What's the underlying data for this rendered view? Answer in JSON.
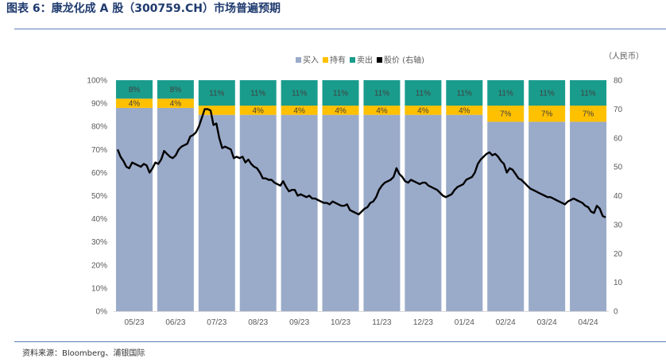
{
  "header": {
    "title": "图表 6：康龙化成 A 股（300759.CH）市场普遍预期"
  },
  "footer": {
    "source": "资料来源：Bloomberg、浦银国际"
  },
  "chart_data": {
    "type": "bar",
    "stacked": true,
    "percent_axis": true,
    "categories": [
      "05/23",
      "06/23",
      "07/23",
      "08/23",
      "09/23",
      "10/23",
      "11/23",
      "12/23",
      "01/24",
      "02/24",
      "03/24",
      "04/24"
    ],
    "series": [
      {
        "name": "买入",
        "color": "#9aaac9",
        "values": [
          88,
          88,
          85,
          85,
          85,
          85,
          85,
          85,
          85,
          82,
          82,
          82
        ]
      },
      {
        "name": "持有",
        "color": "#ffc000",
        "values": [
          4,
          4,
          4,
          4,
          4,
          4,
          4,
          4,
          4,
          7,
          7,
          7
        ]
      },
      {
        "name": "卖出",
        "color": "#1a9c8c",
        "values": [
          8,
          8,
          11,
          11,
          11,
          11,
          11,
          11,
          11,
          11,
          11,
          11
        ]
      }
    ],
    "segment_labels": {
      "持有": [
        "4%",
        "4%",
        "",
        "4%",
        "4%",
        "4%",
        "4%",
        "4%",
        "4%",
        "7%",
        "7%",
        "7%"
      ],
      "卖出": [
        "8%",
        "8%",
        "11%",
        "11%",
        "11%",
        "11%",
        "11%",
        "11%",
        "11%",
        "11%",
        "11%",
        "11%"
      ]
    },
    "line_series": {
      "name": "股价 (右轴)",
      "color": "#000000",
      "axis": "right",
      "values": [
        56,
        53.5,
        52,
        50,
        49.5,
        51.5,
        51,
        50.5,
        50,
        51,
        50.5,
        48,
        49.5,
        51.5,
        51,
        52.5,
        55.5,
        54.5,
        53.5,
        53,
        54,
        56,
        57,
        57.5,
        58,
        60.5,
        61,
        62,
        64,
        67,
        70,
        70,
        69.5,
        64.5,
        65,
        60,
        56.5,
        57,
        56.5,
        56,
        53,
        53.5,
        53,
        53.5,
        51.5,
        52.5,
        51,
        50,
        49.5,
        48,
        46,
        46,
        45.5,
        45.5,
        44.5,
        44,
        43.5,
        45,
        43,
        41.5,
        42,
        42,
        40,
        40.5,
        40,
        39.5,
        40,
        39,
        39,
        38.5,
        38,
        37.5,
        37.5,
        37,
        38,
        37.5,
        37,
        36.5,
        36.5,
        37,
        35,
        34.5,
        34,
        33.5,
        34.5,
        35.5,
        36,
        37.5,
        38,
        39.5,
        42,
        43.5,
        44.5,
        45,
        45.5,
        46.5,
        49.5,
        47.5,
        46.5,
        45,
        44.5,
        45.5,
        45,
        44.5,
        44,
        44.5,
        44.5,
        43.5,
        43,
        42.5,
        42,
        41,
        40,
        39.5,
        40,
        40.5,
        42,
        43,
        43.5,
        44,
        45.5,
        46,
        46.5,
        48,
        51,
        52.5,
        53.5,
        54.5,
        55,
        54,
        54.5,
        53.5,
        52,
        51,
        48,
        49.5,
        49,
        47.5,
        46,
        45.5,
        44.5,
        43.5,
        42.5,
        42,
        41.5,
        41,
        40.5,
        40,
        39.5,
        39.5,
        39,
        38.5,
        38,
        37.5,
        37,
        38,
        38.5,
        39,
        38.5,
        38,
        37.5,
        36.5,
        36,
        34.5,
        34,
        36.5,
        35.5,
        33,
        32.5
      ]
    },
    "left_axis": {
      "min": 0,
      "max": 100,
      "ticks": [
        "0%",
        "10%",
        "20%",
        "30%",
        "40%",
        "50%",
        "60%",
        "70%",
        "80%",
        "90%",
        "100%"
      ]
    },
    "right_axis": {
      "min": 0,
      "max": 80,
      "ticks": [
        "0",
        "10",
        "20",
        "30",
        "40",
        "50",
        "60",
        "70",
        "80"
      ],
      "unit": "（人民币）"
    },
    "legend": {
      "position": "top",
      "items": [
        {
          "label": "买入",
          "color": "#9aaac9"
        },
        {
          "label": "持有",
          "color": "#ffc000"
        },
        {
          "label": "卖出",
          "color": "#1a9c8c"
        },
        {
          "label": "股价 (右轴)",
          "color": "#000000"
        }
      ]
    },
    "grid": false
  }
}
